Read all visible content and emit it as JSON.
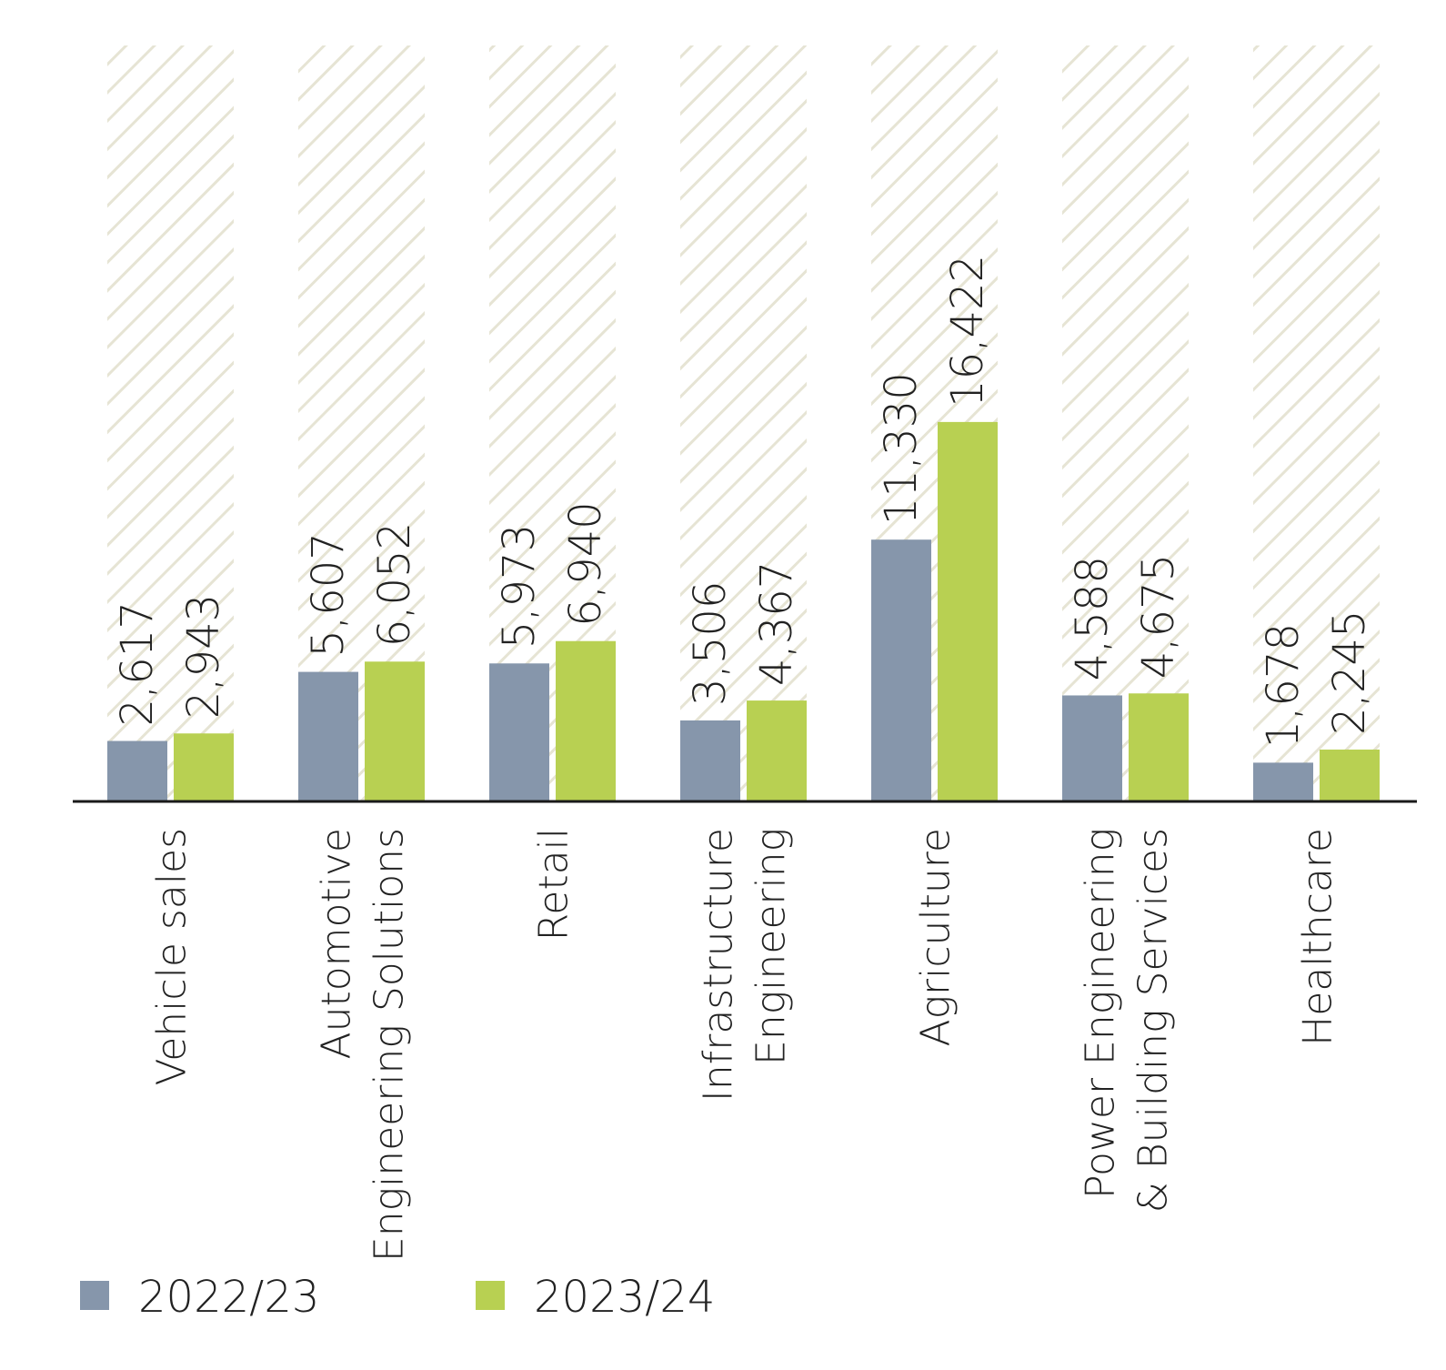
{
  "chart_data": {
    "type": "bar",
    "title": "",
    "xlabel": "",
    "ylabel": "",
    "ylim": [
      0,
      17000
    ],
    "grid": false,
    "legend_position": "bottom-left",
    "categories": [
      [
        "Vehicle sales"
      ],
      [
        "Automotive",
        "Engineering Solutions"
      ],
      [
        "Retail"
      ],
      [
        "Infrastructure",
        "Engineering"
      ],
      [
        "Agriculture"
      ],
      [
        "Power Engineering",
        "& Building Services"
      ],
      [
        "Healthcare"
      ]
    ],
    "series": [
      {
        "name": "2022/23",
        "color": "#8696ab",
        "values": [
          2617,
          5607,
          5973,
          3506,
          11330,
          4588,
          1678
        ],
        "labels": [
          "2,617",
          "5,607",
          "5,973",
          "3,506",
          "11,330",
          "4,588",
          "1,678"
        ]
      },
      {
        "name": "2023/24",
        "color": "#b8d052",
        "values": [
          2943,
          6052,
          6940,
          4367,
          16422,
          4675,
          2245
        ],
        "labels": [
          "2,943",
          "6,052",
          "6,940",
          "4,367",
          "16,422",
          "4,675",
          "2,245"
        ]
      }
    ],
    "colors": {
      "hatch_stripe": "#e6e4d4",
      "axis": "#1a1a1a",
      "text": "#222222"
    }
  }
}
